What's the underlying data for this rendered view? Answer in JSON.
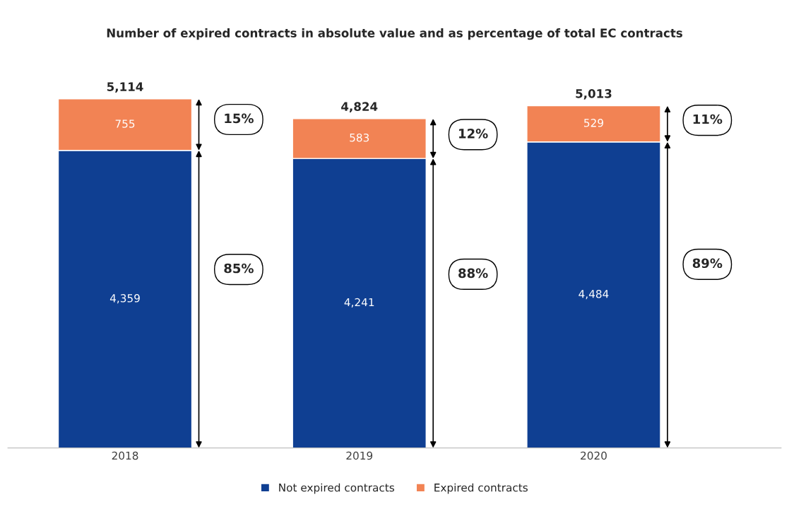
{
  "chart_data": {
    "type": "bar",
    "title": "Number of expired contracts in absolute value and as percentage of total EC contracts",
    "categories": [
      "2018",
      "2019",
      "2020"
    ],
    "stacked": true,
    "series": [
      {
        "name": "Not expired contracts",
        "color": "#0f3f92",
        "values": [
          4359,
          4241,
          4484
        ],
        "value_labels": [
          "4,359",
          "4,241",
          "4,484"
        ]
      },
      {
        "name": "Expired contracts",
        "color": "#f28354",
        "values": [
          755,
          583,
          529
        ],
        "value_labels": [
          "755",
          "583",
          "529"
        ]
      }
    ],
    "totals": [
      "5,114",
      "4,824",
      "5,013"
    ],
    "annotations": [
      "85%",
      "15%",
      "88%",
      "12%",
      "89%",
      "11%"
    ],
    "tick_labels": "x",
    "grid": false,
    "legend": "bottom"
  }
}
